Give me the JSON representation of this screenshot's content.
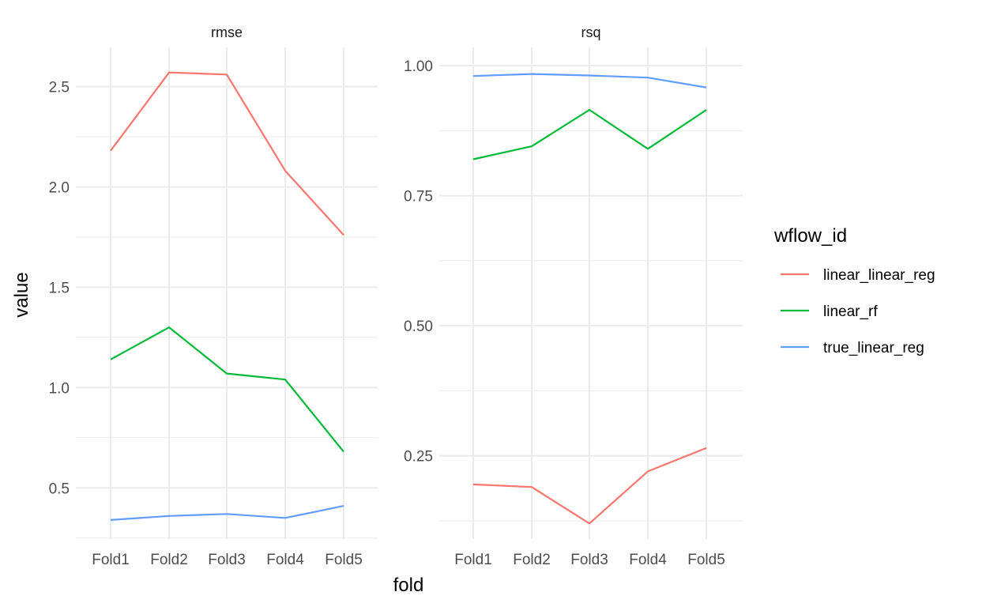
{
  "chart_data": {
    "type": "line",
    "x_title": "fold",
    "y_title": "value",
    "categories": [
      "Fold1",
      "Fold2",
      "Fold3",
      "Fold4",
      "Fold5"
    ],
    "legend": {
      "title": "wflow_id",
      "placement": "right",
      "entries": [
        {
          "name": "linear_linear_reg",
          "color": "#F8766D"
        },
        {
          "name": "linear_rf",
          "color": "#00BA38"
        },
        {
          "name": "true_linear_reg",
          "color": "#619CFF"
        }
      ]
    },
    "panels": [
      {
        "strip": "rmse",
        "ylim": [
          0.245,
          2.695
        ],
        "y_ticks": [
          0.5,
          1.0,
          1.5,
          2.0,
          2.5
        ],
        "y_tick_labels": [
          "0.5",
          "1.0",
          "1.5",
          "2.0",
          "2.5"
        ],
        "y_minor": [
          0.25,
          0.75,
          1.25,
          1.75,
          2.25
        ],
        "series": [
          {
            "name": "linear_linear_reg",
            "values": [
              2.18,
              2.57,
              2.56,
              2.08,
              1.76
            ]
          },
          {
            "name": "linear_rf",
            "values": [
              1.14,
              1.3,
              1.07,
              1.04,
              0.68
            ]
          },
          {
            "name": "true_linear_reg",
            "values": [
              0.34,
              0.36,
              0.37,
              0.35,
              0.41
            ]
          }
        ]
      },
      {
        "strip": "rsq",
        "ylim": [
          0.09,
          1.035
        ],
        "y_ticks": [
          0.25,
          0.5,
          0.75,
          1.0
        ],
        "y_tick_labels": [
          "0.25",
          "0.50",
          "0.75",
          "1.00"
        ],
        "y_minor": [
          0.125,
          0.375,
          0.625,
          0.875
        ],
        "series": [
          {
            "name": "linear_linear_reg",
            "values": [
              0.195,
              0.19,
              0.12,
              0.22,
              0.265
            ]
          },
          {
            "name": "linear_rf",
            "values": [
              0.82,
              0.845,
              0.915,
              0.84,
              0.915
            ]
          },
          {
            "name": "true_linear_reg",
            "values": [
              0.98,
              0.984,
              0.981,
              0.977,
              0.958
            ]
          }
        ]
      }
    ],
    "grid": true
  }
}
